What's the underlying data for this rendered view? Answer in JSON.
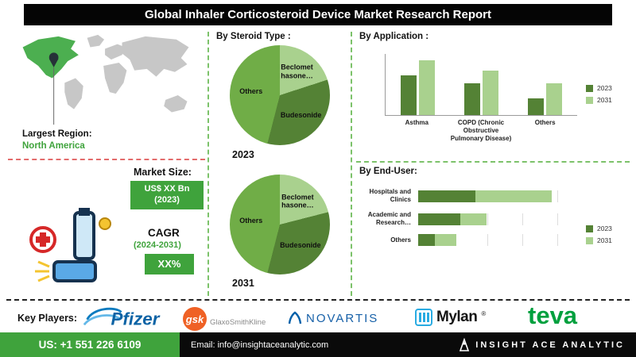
{
  "header": {
    "title": "Global Inhaler Corticosteroid Device Market Research Report"
  },
  "map": {
    "region_label": "Largest Region:",
    "region_value": "North America"
  },
  "market": {
    "size_label": "Market Size:",
    "size_value_line1": "US$ XX Bn",
    "size_value_line2": "(2023)",
    "cagr_label": "CAGR",
    "cagr_period": "(2024-2031)",
    "cagr_value": "XX%"
  },
  "sections": {
    "steroid": "By Steroid Type :",
    "application": "By Application :",
    "end_user": "By End-User:"
  },
  "key_players": {
    "label": "Key Players:",
    "pfizer": "Pfizer",
    "gsk_short": "gsk",
    "gsk_full": "GlaxoSmithKline",
    "novartis": "NOVARTIS",
    "mylan": "Mylan",
    "mylan_mark": "®",
    "teva": "teva"
  },
  "footer": {
    "phone": "US: +1 551 226 6109",
    "email": "Email: info@insightaceanalytic.com",
    "brand": "INSIGHT ACE ANALYTIC"
  },
  "colors": {
    "accent_green": "#3fa33c",
    "dark_green": "#548235",
    "mid_green": "#70ad47",
    "light_green": "#a9d18e",
    "dash_red": "#e36c6c",
    "gsk_orange": "#ef6125",
    "pfizer_blue": "#0b63a5",
    "novartis_blue": "#0460a9",
    "mylan_blue": "#29abe2",
    "teva_green": "#00a03e"
  },
  "chart_data": [
    {
      "id": "steroid-2023",
      "type": "pie",
      "title": "2023",
      "labels": [
        "Beclomet hasone…",
        "Budesonide",
        "Others"
      ],
      "values": [
        20,
        34,
        46
      ],
      "colors": [
        "#a9d18e",
        "#548235",
        "#70ad47"
      ]
    },
    {
      "id": "steroid-2031",
      "type": "pie",
      "title": "2031",
      "labels": [
        "Beclomet hasone…",
        "Budesonide",
        "Others"
      ],
      "values": [
        21,
        33,
        46
      ],
      "colors": [
        "#a9d18e",
        "#548235",
        "#70ad47"
      ]
    },
    {
      "id": "application",
      "type": "bar",
      "title": "By Application :",
      "categories": [
        "Asthma",
        "COPD (Chronic Obstructive Pulmonary Disease)",
        "Others"
      ],
      "series": [
        {
          "name": "2023",
          "color": "#548235",
          "values": [
            52,
            42,
            22
          ]
        },
        {
          "name": "2031",
          "color": "#a9d18e",
          "values": [
            72,
            58,
            42
          ]
        }
      ],
      "xlabel": "",
      "ylabel": "",
      "ylim": [
        0,
        80
      ],
      "legend_position": "right",
      "grid": false
    },
    {
      "id": "end-user",
      "type": "hbar-stacked",
      "title": "By End-User:",
      "categories": [
        "Hospitals and Clinics",
        "Academic and Research…",
        "Others"
      ],
      "series": [
        {
          "name": "2023",
          "color": "#548235",
          "values": [
            44,
            32,
            13
          ]
        },
        {
          "name": "2031",
          "color": "#a9d18e",
          "values": [
            58,
            20,
            16
          ]
        }
      ],
      "legend_position": "right",
      "grid": true
    }
  ]
}
